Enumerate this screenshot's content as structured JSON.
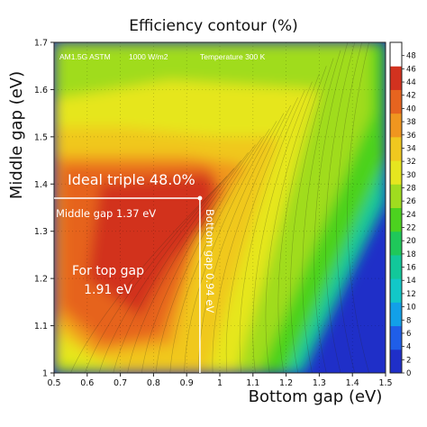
{
  "chart_data": {
    "type": "heatmap",
    "title": "Efficiency contour (%)",
    "xlabel": "Bottom gap (eV)",
    "ylabel": "Middle gap (eV)",
    "xlim": [
      0.5,
      1.5
    ],
    "ylim": [
      1.0,
      1.7
    ],
    "x_ticks": [
      "0.5",
      "0.6",
      "0.7",
      "0.8",
      "0.9",
      "1",
      "1.1",
      "1.2",
      "1.3",
      "1.4",
      "1.5"
    ],
    "y_ticks": [
      "1",
      "1.1",
      "1.2",
      "1.3",
      "1.4",
      "1.5",
      "1.6",
      "1.7"
    ],
    "colorbar": {
      "range": [
        0,
        50
      ],
      "ticks": [
        "0",
        "2",
        "4",
        "6",
        "8",
        "10",
        "12",
        "14",
        "16",
        "18",
        "20",
        "22",
        "24",
        "26",
        "28",
        "30",
        "32",
        "34",
        "36",
        "38",
        "40",
        "42",
        "44",
        "46",
        "48"
      ],
      "colors": [
        "#1f2fc8",
        "#1f5ee8",
        "#12a0e8",
        "#12c8c8",
        "#12c89a",
        "#1fc85a",
        "#4cd21f",
        "#a0dc1f",
        "#e6e61f",
        "#f0c81f",
        "#f0961f",
        "#e6641f",
        "#d2321f",
        "#ffffff"
      ]
    },
    "conditions": [
      "AM1.5G ASTM",
      "1000 W/m2",
      "Temperature 300 K"
    ],
    "max_point": {
      "x": 0.94,
      "y": 1.37,
      "efficiency_percent": 48.0
    },
    "annotations": {
      "ideal": "Ideal triple 48.0%",
      "middle_gap": "Middle gap 1.37 eV",
      "top_gap_line1": "For top gap",
      "top_gap_line2": "1.91 eV",
      "bottom_gap": "Bottom gap 0.94 eV"
    },
    "grid": true,
    "legend": "colorbar-right"
  }
}
